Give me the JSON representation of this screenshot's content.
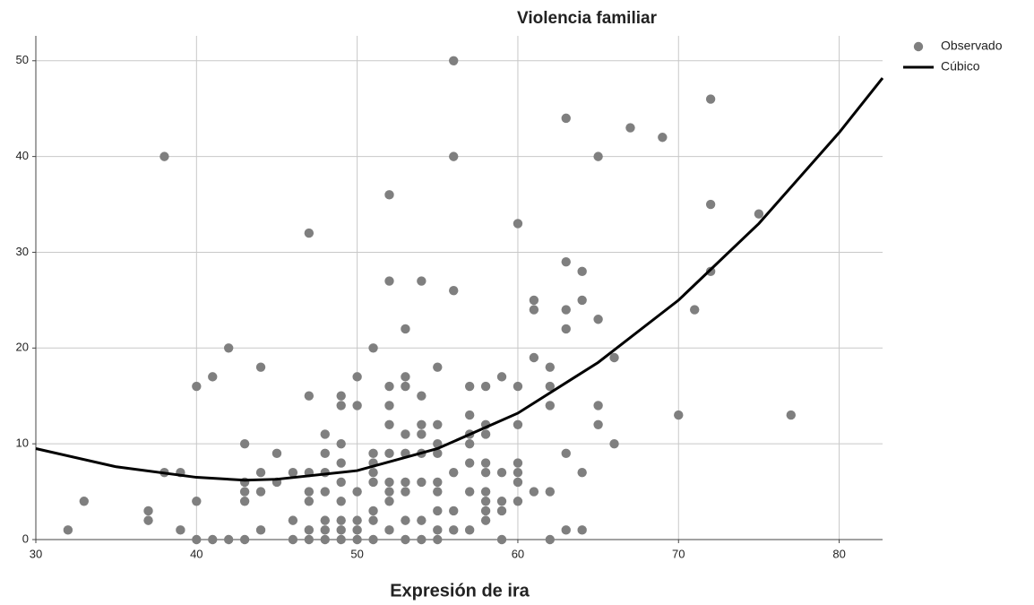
{
  "chart_data": {
    "type": "scatter",
    "title": "Violencia familiar",
    "x_label": "Expresión de ira",
    "xlim": [
      30,
      82.7
    ],
    "ylim": [
      0,
      52.6
    ],
    "xticks": [
      30,
      40,
      50,
      60,
      70,
      80
    ],
    "yticks": [
      0,
      10,
      20,
      30,
      40,
      50
    ],
    "grid": true,
    "legend": "right",
    "series": [
      {
        "name": "Observado",
        "color": "#7f7f7f",
        "mark": "points",
        "x": [
          32,
          33,
          37,
          37,
          38,
          38,
          39,
          39,
          40,
          40,
          40,
          41,
          41,
          42,
          42,
          43,
          43,
          43,
          43,
          43,
          44,
          44,
          44,
          44,
          45,
          45,
          46,
          46,
          46,
          47,
          47,
          47,
          47,
          47,
          47,
          47,
          48,
          48,
          48,
          48,
          48,
          48,
          48,
          49,
          49,
          49,
          49,
          49,
          49,
          49,
          49,
          49,
          50,
          50,
          50,
          50,
          50,
          50,
          51,
          51,
          51,
          51,
          51,
          51,
          51,
          51,
          52,
          52,
          52,
          52,
          52,
          52,
          52,
          52,
          52,
          52,
          53,
          53,
          53,
          53,
          53,
          53,
          53,
          53,
          53,
          54,
          54,
          54,
          54,
          54,
          54,
          54,
          54,
          55,
          55,
          55,
          55,
          55,
          55,
          55,
          55,
          55,
          56,
          56,
          56,
          56,
          56,
          56,
          57,
          57,
          57,
          57,
          57,
          57,
          57,
          58,
          58,
          58,
          58,
          58,
          58,
          58,
          58,
          58,
          59,
          59,
          59,
          59,
          59,
          60,
          60,
          60,
          60,
          60,
          60,
          60,
          61,
          61,
          61,
          61,
          62,
          62,
          62,
          62,
          62,
          63,
          63,
          63,
          63,
          63,
          63,
          64,
          64,
          64,
          64,
          65,
          65,
          65,
          65,
          66,
          66,
          67,
          69,
          70,
          71,
          72,
          72,
          72,
          75,
          77
        ],
        "values": [
          1,
          4,
          3,
          2,
          40,
          7,
          7,
          1,
          16,
          4,
          0,
          17,
          0,
          20,
          0,
          10,
          6,
          5,
          4,
          0,
          18,
          7,
          5,
          1,
          9,
          6,
          7,
          2,
          0,
          32,
          15,
          7,
          5,
          4,
          1,
          0,
          11,
          9,
          7,
          5,
          2,
          1,
          0,
          15,
          14,
          10,
          8,
          6,
          4,
          2,
          1,
          0,
          17,
          14,
          5,
          2,
          1,
          0,
          20,
          9,
          8,
          7,
          6,
          3,
          2,
          0,
          36,
          27,
          16,
          14,
          12,
          9,
          6,
          5,
          4,
          1,
          22,
          17,
          16,
          11,
          9,
          6,
          5,
          2,
          0,
          27,
          15,
          12,
          11,
          9,
          6,
          2,
          0,
          18,
          12,
          10,
          9,
          6,
          5,
          3,
          1,
          0,
          50,
          40,
          26,
          7,
          3,
          1,
          16,
          13,
          11,
          10,
          8,
          5,
          1,
          16,
          12,
          11,
          8,
          7,
          5,
          4,
          3,
          2,
          17,
          7,
          4,
          3,
          0,
          33,
          16,
          12,
          8,
          7,
          6,
          4,
          25,
          24,
          19,
          5,
          18,
          16,
          14,
          5,
          0,
          44,
          29,
          24,
          22,
          9,
          1,
          28,
          25,
          7,
          1,
          40,
          23,
          14,
          12,
          19,
          10,
          43,
          42,
          13,
          24,
          46,
          35,
          28,
          34,
          13
        ]
      },
      {
        "name": "Cúbico",
        "color": "#000000",
        "mark": "line",
        "x": [
          30,
          35,
          40,
          43,
          45,
          50,
          55,
          60,
          65,
          70,
          75,
          80,
          82.7
        ],
        "values": [
          9.5,
          7.6,
          6.5,
          6.2,
          6.3,
          7.2,
          9.5,
          13.2,
          18.5,
          25,
          33,
          42.5,
          48.2
        ]
      }
    ]
  }
}
